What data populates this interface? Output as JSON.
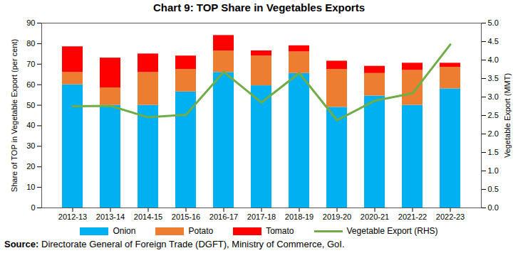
{
  "chart_data": {
    "type": "bar",
    "title": "Chart 9: TOP Share in Vegetables Exports",
    "stacked": true,
    "categories": [
      "2012-13",
      "2013-14",
      "2014-15",
      "2015-16",
      "2016-17",
      "2017-18",
      "2018-19",
      "2019-20",
      "2020-21",
      "2021-22",
      "2022-23"
    ],
    "ylabel": "Share of TOP in Vegetable Export (per cent)",
    "y2label": "Vegetable Export (MMT)",
    "ylim": [
      0,
      90
    ],
    "yticks": [
      0,
      10,
      20,
      30,
      40,
      50,
      60,
      70,
      80,
      90
    ],
    "y2lim": [
      0,
      5
    ],
    "y2ticks": [
      {
        "value": 0,
        "label": "0.0"
      },
      {
        "value": 0.5,
        "label": "0.5"
      },
      {
        "value": 1,
        "label": "1.0"
      },
      {
        "value": 1.5,
        "label": "1.5"
      },
      {
        "value": 2,
        "label": "2.0"
      },
      {
        "value": 2.5,
        "label": "2.5"
      },
      {
        "value": 3,
        "label": "3.0"
      },
      {
        "value": 3.5,
        "label": "3.5"
      },
      {
        "value": 4,
        "label": "4.0"
      },
      {
        "value": 4.5,
        "label": "4.5"
      },
      {
        "value": 5,
        "label": "5.0"
      }
    ],
    "grid": false,
    "legend": "bottom",
    "series": [
      {
        "name": "Onion",
        "type": "bar",
        "color": "#00b0f0",
        "values": [
          60,
          50,
          50,
          56.5,
          66,
          59.5,
          65.5,
          49,
          54.5,
          50,
          58
        ]
      },
      {
        "name": "Potato",
        "type": "bar",
        "color": "#ed7d31",
        "values": [
          6,
          8.5,
          16,
          11,
          10.5,
          14.5,
          10.5,
          18.5,
          11,
          17,
          10.5
        ]
      },
      {
        "name": "Tomato",
        "type": "bar",
        "color": "#ff0000",
        "values": [
          12.5,
          14.5,
          9,
          6.5,
          7.5,
          2.5,
          3,
          4,
          3.5,
          3.5,
          2
        ]
      },
      {
        "name": "Vegetable Export (RHS)",
        "type": "line",
        "axis": "y2",
        "color": "#70ad47",
        "values": [
          2.75,
          2.76,
          2.45,
          2.52,
          3.68,
          2.85,
          3.65,
          2.37,
          2.9,
          3.1,
          4.42
        ]
      }
    ],
    "source": "Source: Directorate General of Foreign Trade (DGFT), Ministry of Commerce, GoI."
  }
}
